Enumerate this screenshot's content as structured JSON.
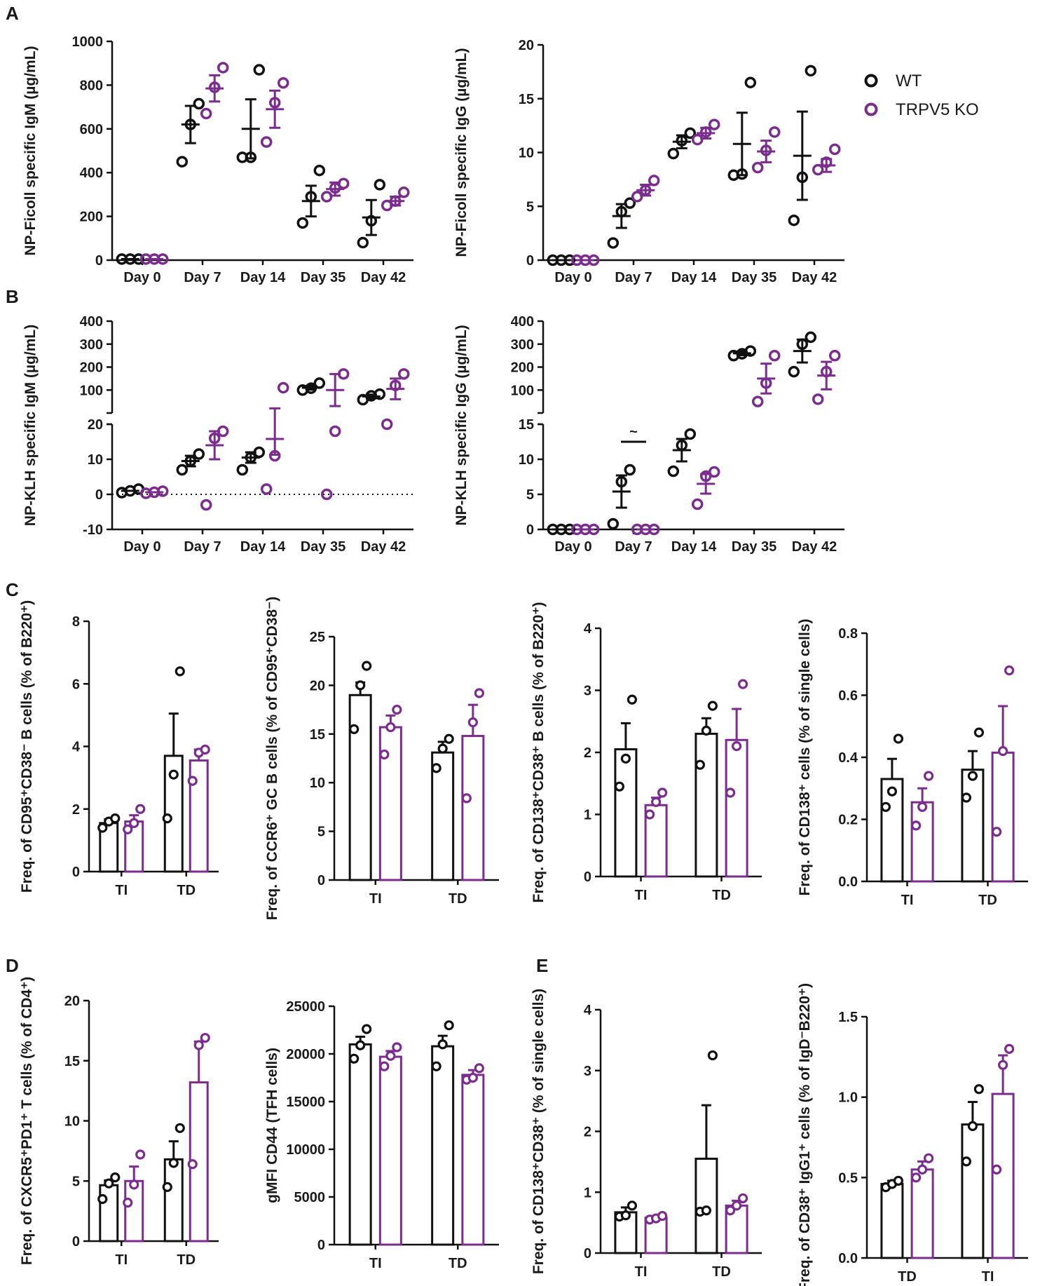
{
  "colors": {
    "wt": "#111111",
    "ko": "#7b2d8e"
  },
  "legend": [
    {
      "label": "WT",
      "color": "#111111"
    },
    {
      "label": "TRPV5 KO",
      "color": "#7b2d8e"
    }
  ],
  "panel_labels": [
    "A",
    "B",
    "C",
    "D",
    "E"
  ],
  "chart_data": [
    {
      "id": "A1",
      "panel": "A",
      "type": "scatter",
      "title": "",
      "ylabel": "NP-Ficoll specific IgM (µg/mL)",
      "categories": [
        "Day 0",
        "Day 7",
        "Day 14",
        "Day 35",
        "Day 42"
      ],
      "yticks": [
        "0",
        "200",
        "400",
        "600",
        "800",
        "1000"
      ],
      "ylim": [
        0,
        1000
      ],
      "series": [
        {
          "name": "WT",
          "points": [
            [
              5,
              5,
              5
            ],
            [
              450,
              620,
              715
            ],
            [
              470,
              470,
              870
            ],
            [
              170,
              290,
              410
            ],
            [
              80,
              180,
              345
            ]
          ],
          "mean": [
            5,
            620,
            600,
            270,
            195
          ],
          "sem": [
            0,
            85,
            135,
            70,
            80
          ]
        },
        {
          "name": "TRPV5 KO",
          "points": [
            [
              5,
              5,
              5
            ],
            [
              670,
              790,
              880
            ],
            [
              540,
              720,
              810
            ],
            [
              290,
              330,
              350
            ],
            [
              250,
              270,
              310
            ]
          ],
          "mean": [
            5,
            785,
            690,
            325,
            270
          ],
          "sem": [
            0,
            60,
            85,
            30,
            20
          ]
        }
      ]
    },
    {
      "id": "A2",
      "panel": "A",
      "type": "scatter",
      "title": "",
      "ylabel": "NP-Ficoll specific IgG (µg/mL)",
      "categories": [
        "Day 0",
        "Day 7",
        "Day 14",
        "Day 35",
        "Day 42"
      ],
      "yticks": [
        "0",
        "5",
        "10",
        "15",
        "20"
      ],
      "ylim": [
        0,
        20
      ],
      "series": [
        {
          "name": "WT",
          "points": [
            [
              0,
              0,
              0
            ],
            [
              1.6,
              4.5,
              5.3
            ],
            [
              9.9,
              11.1,
              11.8
            ],
            [
              7.9,
              8.0,
              16.5
            ],
            [
              3.7,
              7.7,
              17.6
            ]
          ],
          "mean": [
            0,
            4.1,
            11.0,
            10.8,
            9.7
          ],
          "sem": [
            0,
            1.1,
            0.6,
            2.9,
            4.1
          ]
        },
        {
          "name": "TRPV5 KO",
          "points": [
            [
              0,
              0,
              0
            ],
            [
              5.9,
              6.5,
              7.4
            ],
            [
              11.2,
              11.9,
              12.6
            ],
            [
              8.6,
              10.2,
              11.9
            ],
            [
              8.4,
              9.1,
              10.3
            ]
          ],
          "mean": [
            0,
            6.5,
            11.8,
            10.1,
            8.8
          ],
          "sem": [
            0,
            0.5,
            0.5,
            1.0,
            0.6
          ]
        }
      ]
    },
    {
      "id": "B1",
      "panel": "B",
      "type": "scatter",
      "title": "",
      "ylabel": "NP-KLH specific IgM (µg/mL)",
      "categories": [
        "Day 0",
        "Day 7",
        "Day 14",
        "Day 35",
        "Day 42"
      ],
      "yticks": [
        "-10",
        "0",
        "10",
        "20",
        "100",
        "200",
        "300",
        "400"
      ],
      "ylim_lower": [
        -10,
        20
      ],
      "ylim_upper": [
        0,
        400
      ],
      "annotation": "",
      "series": [
        {
          "name": "WT",
          "points": [
            [
              0.5,
              1,
              1.5
            ],
            [
              7,
              9.5,
              11.5
            ],
            [
              7,
              10.5,
              12
            ],
            [
              100,
              108,
              130
            ],
            [
              58,
              75,
              82
            ]
          ],
          "mean": [
            1,
            9.5,
            10.5,
            110,
            72
          ],
          "sem": [
            0,
            1.5,
            1.5,
            8,
            8
          ]
        },
        {
          "name": "TRPV5 KO",
          "points": [
            [
              0.3,
              0.6,
              0.9
            ],
            [
              -3,
              16,
              18
            ],
            [
              1.5,
              11,
              110
            ],
            [
              0,
              18,
              170
            ],
            [
              20,
              120,
              170
            ]
          ],
          "mean": [
            0.6,
            14,
            15.8,
            100,
            105
          ],
          "sem": [
            0,
            4,
            4.5,
            70,
            45
          ]
        }
      ]
    },
    {
      "id": "B2",
      "panel": "B",
      "type": "scatter",
      "title": "",
      "ylabel": "NP-KLH specific IgG (µg/mL)",
      "categories": [
        "Day 0",
        "Day 7",
        "Day 14",
        "Day 35",
        "Day 42"
      ],
      "yticks": [
        "0",
        "5",
        "10",
        "15",
        "100",
        "200",
        "300",
        "400"
      ],
      "ylim_lower": [
        0,
        15
      ],
      "ylim_upper": [
        0,
        400
      ],
      "annotation": "~",
      "series": [
        {
          "name": "WT",
          "points": [
            [
              0,
              0,
              0
            ],
            [
              0.8,
              6.8,
              8.5
            ],
            [
              8.3,
              12.0,
              13.6
            ],
            [
              250,
              258,
              270
            ],
            [
              180,
              300,
              330
            ]
          ],
          "mean": [
            0,
            5.4,
            11.3,
            260,
            270
          ],
          "sem": [
            0,
            2.3,
            1.6,
            8,
            50
          ]
        },
        {
          "name": "TRPV5 KO",
          "points": [
            [
              0,
              0,
              0
            ],
            [
              0,
              0,
              0
            ],
            [
              3.6,
              7.6,
              8.2
            ],
            [
              50,
              130,
              250
            ],
            [
              60,
              180,
              250
            ]
          ],
          "mean": [
            0,
            0,
            6.5,
            150,
            163
          ],
          "sem": [
            0,
            0,
            1.4,
            65,
            60
          ]
        }
      ]
    },
    {
      "id": "C1",
      "panel": "C",
      "type": "bar",
      "title": "",
      "ylabel": "Freq. of CD95⁺CD38⁻ B cells (% of B220⁺)",
      "categories": [
        "TI",
        "TD"
      ],
      "yticks": [
        "0",
        "2",
        "4",
        "6",
        "8"
      ],
      "ylim": [
        0,
        8
      ],
      "series": [
        {
          "name": "WT",
          "values": [
            1.55,
            3.7
          ],
          "sem": [
            0.12,
            1.35
          ],
          "points": [
            [
              1.4,
              1.6,
              1.7
            ],
            [
              1.7,
              3.1,
              6.4
            ]
          ]
        },
        {
          "name": "TRPV5 KO",
          "values": [
            1.6,
            3.55
          ],
          "sem": [
            0.2,
            0.35
          ],
          "points": [
            [
              1.35,
              1.55,
              2.0
            ],
            [
              2.9,
              3.8,
              3.9
            ]
          ]
        }
      ]
    },
    {
      "id": "C2",
      "panel": "C",
      "type": "bar",
      "title": "",
      "ylabel": "Freq. of CCR6⁺ GC B cells (% of CD95⁺CD38⁻)",
      "categories": [
        "TI",
        "TD"
      ],
      "yticks": [
        "0",
        "5",
        "10",
        "15",
        "20",
        "25"
      ],
      "ylim": [
        0,
        25
      ],
      "series": [
        {
          "name": "WT",
          "values": [
            19.0,
            13.1
          ],
          "sem": [
            1.3,
            1.1
          ],
          "points": [
            [
              15.5,
              20.0,
              22.0
            ],
            [
              11.5,
              13.5,
              14.5
            ]
          ]
        },
        {
          "name": "TRPV5 KO",
          "values": [
            15.7,
            14.8
          ],
          "sem": [
            1.2,
            3.2
          ],
          "points": [
            [
              12.9,
              15.7,
              17.5
            ],
            [
              8.4,
              16.2,
              19.2
            ]
          ]
        }
      ]
    },
    {
      "id": "C3",
      "panel": "C",
      "type": "bar",
      "title": "",
      "ylabel": "Freq. of CD138⁺CD38⁺ B cells (% of B220⁺)",
      "categories": [
        "TI",
        "TD"
      ],
      "yticks": [
        "0",
        "1",
        "2",
        "3",
        "4"
      ],
      "ylim": [
        0,
        4
      ],
      "series": [
        {
          "name": "WT",
          "values": [
            2.05,
            2.3
          ],
          "sem": [
            0.42,
            0.25
          ],
          "points": [
            [
              1.45,
              1.9,
              2.85
            ],
            [
              1.8,
              2.35,
              2.75
            ]
          ]
        },
        {
          "name": "TRPV5 KO",
          "values": [
            1.15,
            2.2
          ],
          "sem": [
            0.12,
            0.5
          ],
          "points": [
            [
              1.0,
              1.2,
              1.35
            ],
            [
              1.35,
              2.1,
              3.1
            ]
          ]
        }
      ]
    },
    {
      "id": "C4",
      "panel": "C",
      "type": "bar",
      "title": "",
      "ylabel": "Freq. of CD138⁺ cells (% of single cells)",
      "categories": [
        "TI",
        "TD"
      ],
      "yticks": [
        "0.0",
        "0.2",
        "0.4",
        "0.6",
        "0.8"
      ],
      "ylim": [
        0,
        0.8
      ],
      "series": [
        {
          "name": "WT",
          "values": [
            0.33,
            0.36
          ],
          "sem": [
            0.065,
            0.06
          ],
          "points": [
            [
              0.24,
              0.29,
              0.46
            ],
            [
              0.27,
              0.34,
              0.48
            ]
          ]
        },
        {
          "name": "TRPV5 KO",
          "values": [
            0.255,
            0.415
          ],
          "sem": [
            0.045,
            0.15
          ],
          "points": [
            [
              0.18,
              0.24,
              0.34
            ],
            [
              0.16,
              0.42,
              0.68
            ]
          ]
        }
      ]
    },
    {
      "id": "D1",
      "panel": "D",
      "type": "bar",
      "title": "",
      "ylabel": "Freq. of CXCR5⁺PD1⁺ T cells (% of CD4⁺)",
      "categories": [
        "TI",
        "TD"
      ],
      "yticks": [
        "0",
        "5",
        "10",
        "15",
        "20"
      ],
      "ylim": [
        0,
        20
      ],
      "series": [
        {
          "name": "WT",
          "values": [
            4.65,
            6.8
          ],
          "sem": [
            0.4,
            1.5
          ],
          "points": [
            [
              3.5,
              4.8,
              5.3
            ],
            [
              4.5,
              6.5,
              9.4
            ]
          ]
        },
        {
          "name": "TRPV5 KO",
          "values": [
            5.0,
            13.2
          ],
          "sem": [
            1.2,
            3.4
          ],
          "points": [
            [
              3.2,
              4.7,
              7.2
            ],
            [
              6.4,
              16.3,
              16.9
            ]
          ]
        }
      ]
    },
    {
      "id": "D2",
      "panel": "D",
      "type": "bar",
      "title": "",
      "ylabel": "gMFI CD44 (TFH cells)",
      "categories": [
        "TI",
        "TD"
      ],
      "yticks": [
        "0",
        "5000",
        "10000",
        "15000",
        "20000",
        "25000"
      ],
      "ylim": [
        0,
        25000
      ],
      "series": [
        {
          "name": "WT",
          "values": [
            21000,
            20800
          ],
          "sem": [
            800,
            1100
          ],
          "points": [
            [
              19500,
              20900,
              22600
            ],
            [
              18700,
              21000,
              23000
            ]
          ]
        },
        {
          "name": "TRPV5 KO",
          "values": [
            19700,
            17800
          ],
          "sem": [
            600,
            500
          ],
          "points": [
            [
              18700,
              19800,
              20700
            ],
            [
              17300,
              17500,
              18500
            ]
          ]
        }
      ]
    },
    {
      "id": "E1",
      "panel": "E",
      "type": "bar",
      "title": "",
      "ylabel": "Freq. of CD138⁺CD38⁺ (% of single cells)",
      "categories": [
        "TI",
        "TD"
      ],
      "yticks": [
        "0",
        "1",
        "2",
        "3",
        "4"
      ],
      "ylim": [
        0,
        4
      ],
      "series": [
        {
          "name": "WT",
          "values": [
            0.67,
            1.55
          ],
          "sem": [
            0.08,
            0.88
          ],
          "points": [
            [
              0.6,
              0.62,
              0.78
            ],
            [
              0.68,
              0.7,
              3.25
            ]
          ]
        },
        {
          "name": "TRPV5 KO",
          "values": [
            0.58,
            0.78
          ],
          "sem": [
            0.03,
            0.08
          ],
          "points": [
            [
              0.55,
              0.57,
              0.61
            ],
            [
              0.7,
              0.78,
              0.9
            ]
          ]
        }
      ]
    },
    {
      "id": "E2",
      "panel": "E",
      "type": "bar",
      "title": "",
      "ylabel": "Freq. of CD38⁺ IgG1⁺ cells (% of IgD⁻B220⁺)",
      "categories": [
        "TD",
        "TI"
      ],
      "yticks": [
        "0.0",
        "0.5",
        "1.0",
        "1.5"
      ],
      "ylim": [
        0,
        1.5
      ],
      "series": [
        {
          "name": "WT",
          "values": [
            0.46,
            0.83
          ],
          "sem": [
            0.02,
            0.14
          ],
          "points": [
            [
              0.44,
              0.46,
              0.48
            ],
            [
              0.6,
              0.82,
              1.05
            ]
          ]
        },
        {
          "name": "TRPV5 KO",
          "values": [
            0.55,
            1.02
          ],
          "sem": [
            0.05,
            0.24
          ],
          "points": [
            [
              0.5,
              0.55,
              0.62
            ],
            [
              0.55,
              1.2,
              1.3
            ]
          ]
        }
      ]
    }
  ]
}
